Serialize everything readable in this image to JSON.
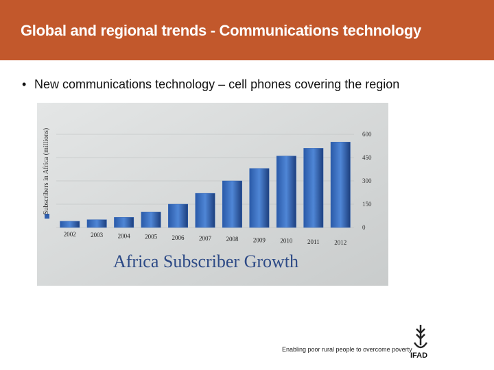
{
  "slide": {
    "title": "Global and regional trends - Communications technology",
    "bullet": "New communications technology – cell phones covering the region",
    "tagline": "Enabling poor rural people to overcome poverty",
    "logo": "IFAD"
  },
  "chart_data": {
    "type": "bar",
    "title": "Africa Subscriber Growth",
    "ylabel": "Subscribers in Africa (millions)",
    "categories": [
      "2002",
      "2003",
      "2004",
      "2005",
      "2006",
      "2007",
      "2008",
      "2009",
      "2010",
      "2011",
      "2012"
    ],
    "values": [
      40,
      50,
      65,
      100,
      150,
      220,
      300,
      380,
      460,
      510,
      550
    ],
    "color": "#2f62b4",
    "ylim": [
      0,
      600
    ],
    "yticks": [
      0,
      150,
      300,
      450,
      600
    ],
    "grid": true
  }
}
